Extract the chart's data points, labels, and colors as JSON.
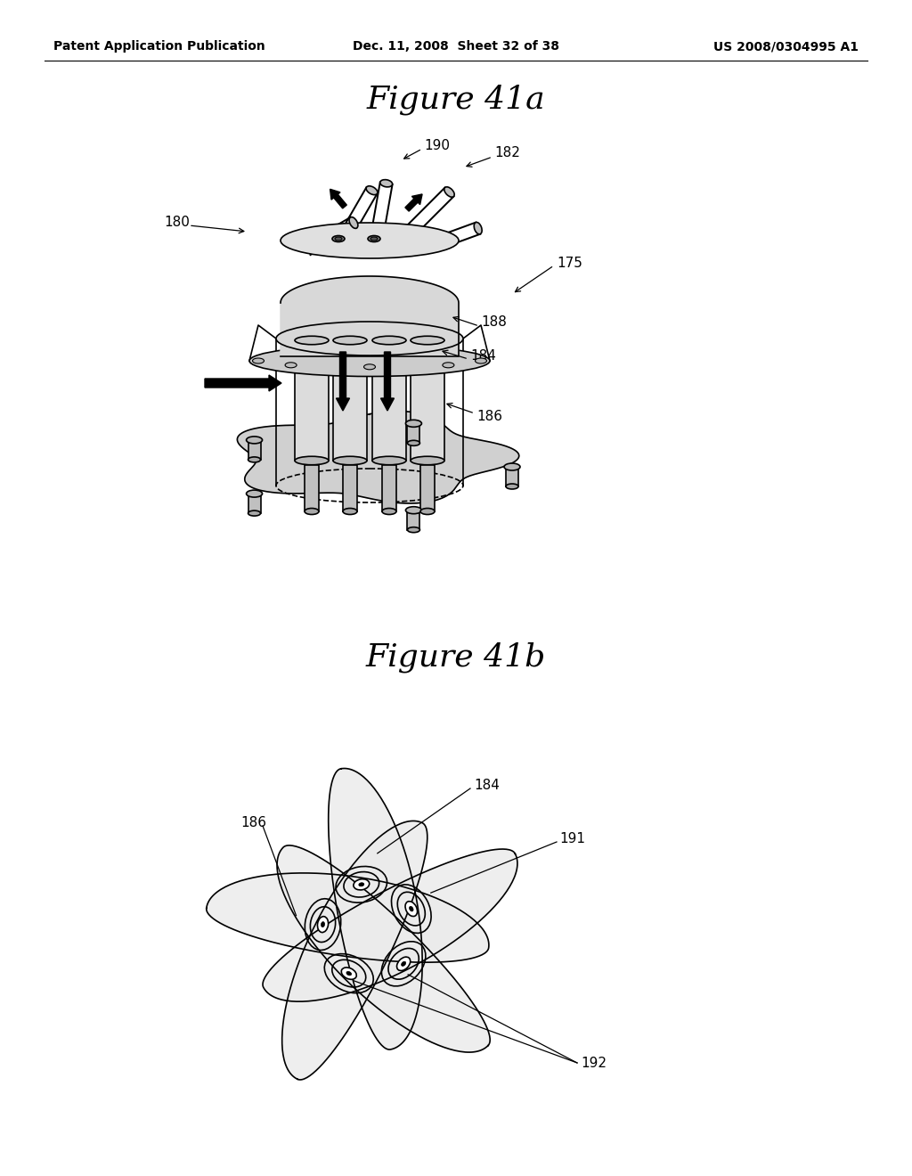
{
  "bg_color": "#ffffff",
  "header_left": "Patent Application Publication",
  "header_mid": "Dec. 11, 2008  Sheet 32 of 38",
  "header_right": "US 2008/0304995 A1",
  "fig41a_title": "Figure 41a",
  "fig41b_title": "Figure 41b",
  "line_color": "#000000",
  "fill_light": "#e8e8e8",
  "fill_mid": "#d0d0d0",
  "fill_dark": "#b0b0b0"
}
